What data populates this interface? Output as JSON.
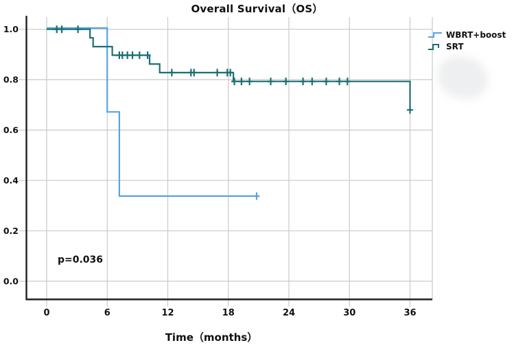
{
  "chart_data": {
    "type": "line",
    "subtype": "kaplan-meier-step",
    "title": "Overall Survival（OS）",
    "xlabel": "Time（months）",
    "ylabel": "",
    "grid": true,
    "legend_position": "right",
    "xlim": [
      0,
      38.2
    ],
    "ylim": [
      0,
      1.05
    ],
    "x_ticks": {
      "values": [
        0,
        6,
        12,
        18,
        24,
        30,
        36
      ],
      "labels": [
        "0",
        "6",
        "12",
        "18",
        "24",
        "30",
        "36"
      ]
    },
    "y_ticks": {
      "values": [
        0.0,
        0.2,
        0.4,
        0.6,
        0.8,
        1.0
      ],
      "labels": [
        "0.0",
        "0.2",
        "0.4",
        "0.6",
        "0.8",
        "1.0"
      ]
    },
    "annotation": {
      "text": "p=0.036",
      "x_month": 1.2,
      "y_survival": 0.1
    },
    "series": [
      {
        "name": "WBRT+boost",
        "color": "#55a4e3",
        "steps": [
          [
            0,
            1.0
          ],
          [
            6.0,
            1.0
          ],
          [
            6.0,
            0.667
          ],
          [
            7.2,
            0.667
          ],
          [
            7.2,
            0.333
          ],
          [
            20.8,
            0.333
          ]
        ],
        "censors": [
          [
            20.8,
            0.333
          ]
        ]
      },
      {
        "name": "SRT",
        "color": "#1b6e72",
        "steps": [
          [
            0,
            1.0
          ],
          [
            4.3,
            1.0
          ],
          [
            4.3,
            0.966
          ],
          [
            4.6,
            0.966
          ],
          [
            4.6,
            0.931
          ],
          [
            6.5,
            0.931
          ],
          [
            6.5,
            0.897
          ],
          [
            10.2,
            0.897
          ],
          [
            10.2,
            0.862
          ],
          [
            11.2,
            0.862
          ],
          [
            11.2,
            0.828
          ],
          [
            18.5,
            0.828
          ],
          [
            18.5,
            0.793
          ],
          [
            36.0,
            0.793
          ],
          [
            36.0,
            0.68
          ]
        ],
        "censors": [
          [
            1.0,
            1.0
          ],
          [
            1.5,
            1.0
          ],
          [
            3.1,
            1.0
          ],
          [
            7.2,
            0.897
          ],
          [
            7.5,
            0.897
          ],
          [
            8.0,
            0.897
          ],
          [
            8.5,
            0.897
          ],
          [
            9.2,
            0.897
          ],
          [
            10.0,
            0.897
          ],
          [
            12.4,
            0.828
          ],
          [
            14.3,
            0.828
          ],
          [
            14.6,
            0.828
          ],
          [
            16.9,
            0.828
          ],
          [
            17.9,
            0.828
          ],
          [
            18.2,
            0.828
          ],
          [
            18.6,
            0.793
          ],
          [
            19.3,
            0.793
          ],
          [
            20.1,
            0.793
          ],
          [
            22.2,
            0.793
          ],
          [
            23.7,
            0.793
          ],
          [
            25.4,
            0.793
          ],
          [
            26.3,
            0.793
          ],
          [
            27.7,
            0.793
          ],
          [
            29.0,
            0.793
          ],
          [
            29.8,
            0.793
          ],
          [
            36.0,
            0.68
          ]
        ]
      }
    ]
  },
  "legend": {
    "items": [
      {
        "label": "WBRT+boost",
        "color": "#55a4e3"
      },
      {
        "label": "SRT",
        "color": "#1b6e72"
      }
    ]
  },
  "colors": {
    "grid": "#c9c9c9",
    "axis": "#1f1f1f",
    "text": "#111111"
  }
}
